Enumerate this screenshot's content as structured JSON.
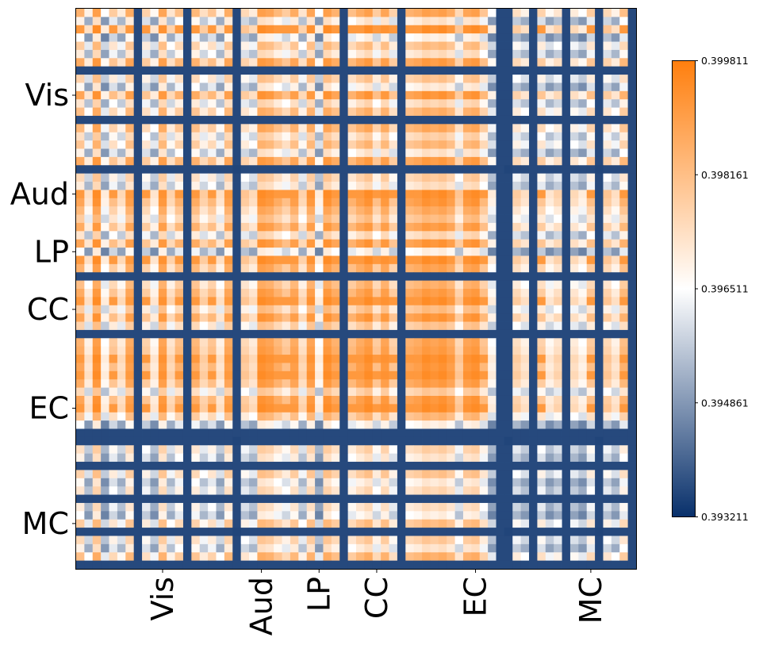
{
  "chart_data": {
    "type": "heatmap",
    "title": "",
    "xlabel": "",
    "ylabel": "",
    "regions": [
      "Vis",
      "Aud",
      "LP",
      "CC",
      "EC",
      "MC"
    ],
    "region_tick_index": [
      10,
      22,
      29,
      36,
      48,
      62
    ],
    "matrix_size": 68,
    "value_range": [
      0.393211,
      0.399811
    ],
    "colorbar_ticks": [
      "0.399811",
      "0.398161",
      "0.396511",
      "0.394861",
      "0.393211"
    ],
    "colormap": [
      "#08306b",
      "#ffffff",
      "#ff7f0e"
    ],
    "node_strength": [
      0.8,
      0.3,
      0.95,
      0.2,
      0.6,
      0.35,
      0.85,
      0.15,
      0.55,
      0.25,
      0.9,
      0.4,
      0.7,
      0.1,
      0.75,
      0.45,
      0.65,
      0.3,
      0.85,
      0.05,
      0.5,
      0.35,
      0.95,
      0.9,
      0.75,
      0.6,
      0.85,
      0.4,
      0.9,
      0.2,
      0.95,
      0.8,
      0.1,
      0.7,
      0.85,
      0.95,
      0.6,
      0.9,
      0.55,
      0.15,
      0.8,
      0.85,
      0.95,
      0.9,
      0.95,
      0.85,
      0.5,
      0.9,
      0.95,
      0.65,
      0.2,
      0.1,
      0.05,
      0.45,
      0.3,
      0.1,
      0.55,
      0.25,
      0.4,
      0.15,
      0.35,
      0.2,
      0.6,
      0.05,
      0.5,
      0.3,
      0.7,
      0.1
    ]
  }
}
